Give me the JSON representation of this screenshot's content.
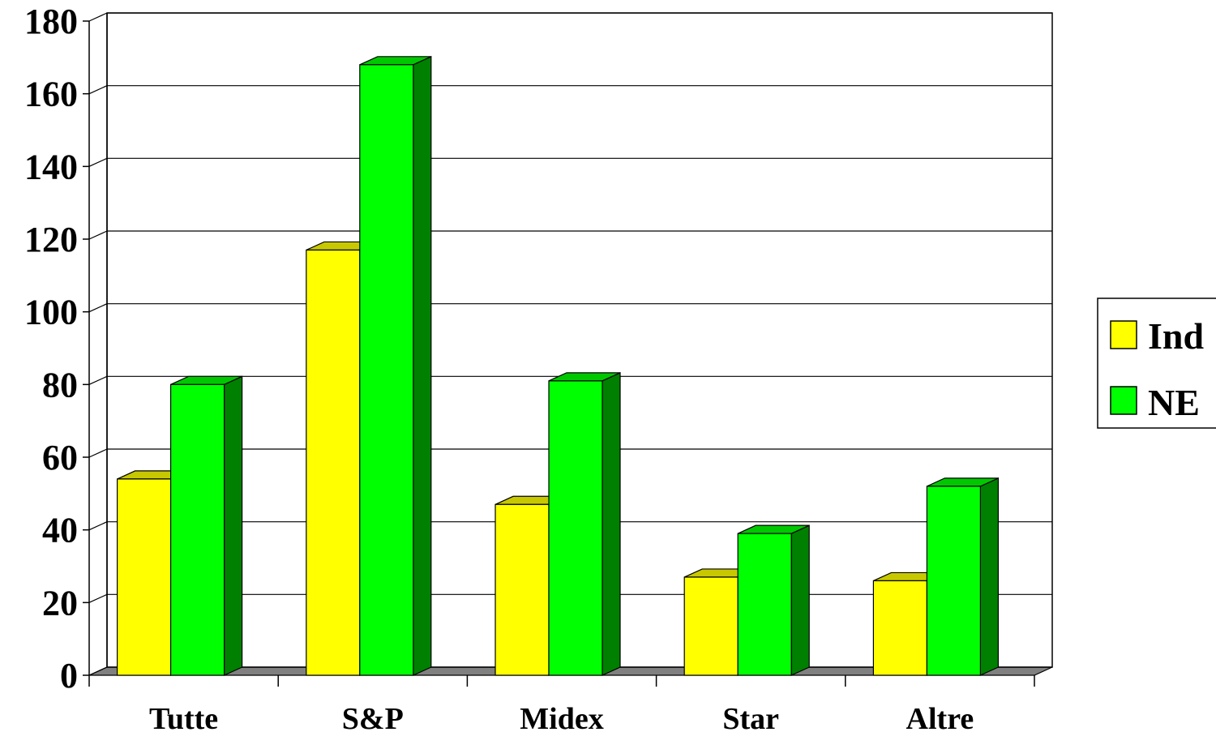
{
  "chart_data": {
    "type": "bar",
    "categories": [
      "Tutte",
      "S&P",
      "Midex",
      "Star",
      "Altre"
    ],
    "series": [
      {
        "name": "Ind",
        "values": [
          54,
          117,
          47,
          27,
          26
        ],
        "color": "#ffff00",
        "top_color": "#c8c800"
      },
      {
        "name": "NE",
        "values": [
          80,
          168,
          81,
          39,
          52
        ],
        "color": "#00ff00",
        "side_color": "#008000",
        "top_color": "#00c800"
      }
    ],
    "ylim": [
      0,
      180
    ],
    "yticks": [
      0,
      20,
      40,
      60,
      80,
      100,
      120,
      140,
      160,
      180
    ],
    "title": "",
    "xlabel": "",
    "ylabel": "",
    "grid": true,
    "legend_position": "right",
    "floor_color": "#808080"
  }
}
